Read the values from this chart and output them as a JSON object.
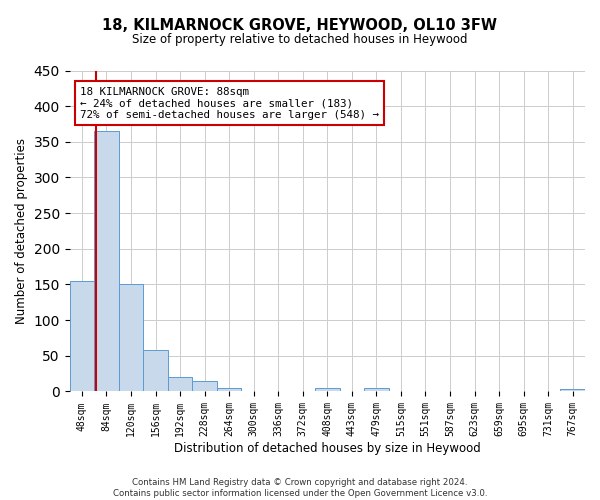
{
  "title": "18, KILMARNOCK GROVE, HEYWOOD, OL10 3FW",
  "subtitle": "Size of property relative to detached houses in Heywood",
  "xlabel": "Distribution of detached houses by size in Heywood",
  "ylabel": "Number of detached properties",
  "bin_labels": [
    "48sqm",
    "84sqm",
    "120sqm",
    "156sqm",
    "192sqm",
    "228sqm",
    "264sqm",
    "300sqm",
    "336sqm",
    "372sqm",
    "408sqm",
    "443sqm",
    "479sqm",
    "515sqm",
    "551sqm",
    "587sqm",
    "623sqm",
    "659sqm",
    "695sqm",
    "731sqm",
    "767sqm"
  ],
  "bar_heights": [
    155,
    365,
    150,
    58,
    20,
    15,
    5,
    0,
    0,
    0,
    5,
    0,
    5,
    0,
    0,
    0,
    0,
    0,
    0,
    0,
    3
  ],
  "bar_color": "#c9d9ec",
  "bar_edge_color": "#5b9bd5",
  "vline_color": "#cc0000",
  "vline_x": 0.555,
  "ylim": [
    0,
    450
  ],
  "yticks": [
    0,
    50,
    100,
    150,
    200,
    250,
    300,
    350,
    400,
    450
  ],
  "annotation_title": "18 KILMARNOCK GROVE: 88sqm",
  "annotation_line1": "← 24% of detached houses are smaller (183)",
  "annotation_line2": "72% of semi-detached houses are larger (548) →",
  "annotation_box_color": "#ffffff",
  "annotation_box_edge": "#cc0000",
  "footer1": "Contains HM Land Registry data © Crown copyright and database right 2024.",
  "footer2": "Contains public sector information licensed under the Open Government Licence v3.0.",
  "background_color": "#ffffff",
  "grid_color": "#cccccc"
}
